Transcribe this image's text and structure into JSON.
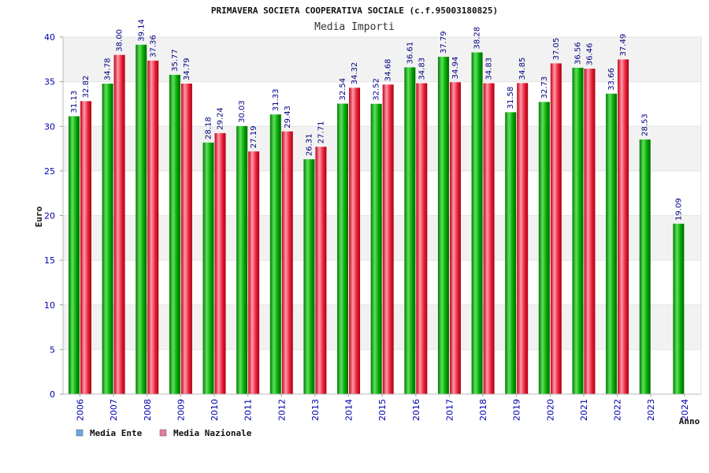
{
  "chart_data": {
    "type": "bar",
    "title": "PRIMAVERA SOCIETA COOPERATIVA SOCIALE (c.f.95003180825)",
    "subtitle": "Media Importi",
    "ylabel": "Euro",
    "xlabel": "Anno",
    "ylim": [
      0,
      40
    ],
    "yticks": [
      0,
      5,
      10,
      15,
      20,
      25,
      30,
      35,
      40
    ],
    "categories": [
      "2006",
      "2007",
      "2008",
      "2009",
      "2010",
      "2011",
      "2012",
      "2013",
      "2014",
      "2015",
      "2016",
      "2017",
      "2018",
      "2019",
      "2020",
      "2021",
      "2022",
      "2023",
      "2024"
    ],
    "series": [
      {
        "name": "Media Ente",
        "color": "#00b000",
        "values": [
          31.13,
          34.78,
          39.14,
          35.77,
          28.18,
          30.03,
          31.33,
          26.31,
          32.54,
          32.52,
          36.61,
          37.79,
          38.28,
          31.58,
          32.73,
          36.56,
          33.66,
          28.53,
          19.09
        ],
        "labels": [
          "31.13",
          "34.78",
          "39.14",
          "35.77",
          "28.18",
          "30.03",
          "31.33",
          "26.31",
          "32.54",
          "32.52",
          "36.61",
          "37.79",
          "38.28",
          "31.58",
          "32.73",
          "36.56",
          "33.66",
          "28.53",
          "19.09"
        ]
      },
      {
        "name": "Media Nazionale",
        "color": "#e02030",
        "values": [
          32.82,
          38.0,
          37.36,
          34.79,
          29.24,
          27.19,
          29.43,
          27.71,
          34.32,
          34.68,
          34.83,
          34.94,
          34.83,
          34.85,
          37.05,
          36.46,
          37.49,
          null,
          null
        ],
        "labels": [
          "32.82",
          "38.00",
          "37.36",
          "34.79",
          "29.24",
          "27.19",
          "29.43",
          "27.71",
          "34.32",
          "34.68",
          "34.83",
          "34.94",
          "34.83",
          "34.85",
          "37.05",
          "36.46",
          "37.49",
          null,
          null
        ]
      }
    ],
    "legend": [
      {
        "label": "Media Ente",
        "color": "#6aa8e8"
      },
      {
        "label": "Media Nazionale",
        "color": "#e87aa8"
      }
    ],
    "legend_position": "bottom-left",
    "grid": true
  }
}
